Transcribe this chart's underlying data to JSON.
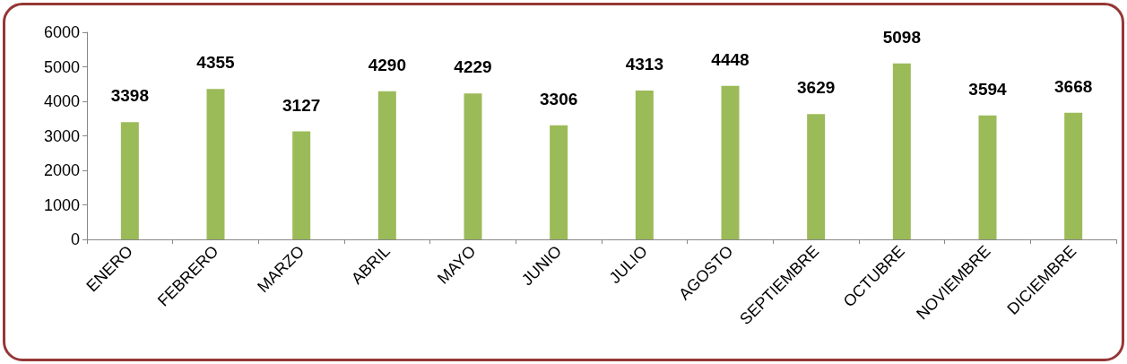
{
  "chart_data": {
    "type": "bar",
    "categories": [
      "ENERO",
      "FEBRERO",
      "MARZO",
      "ABRIL",
      "MAYO",
      "JUNIO",
      "JULIO",
      "AGOSTO",
      "SEPTIEMBRE",
      "OCTUBRE",
      "NOVIEMBRE",
      "DICIEMBRE"
    ],
    "values": [
      3398,
      4355,
      3127,
      4290,
      4229,
      3306,
      4313,
      4448,
      3629,
      5098,
      3594,
      3668
    ],
    "color": "#9bbb59",
    "ylim": [
      0,
      6000
    ],
    "yticks": [
      0,
      1000,
      2000,
      3000,
      4000,
      5000,
      6000
    ],
    "grid": false,
    "data_labels": true
  }
}
